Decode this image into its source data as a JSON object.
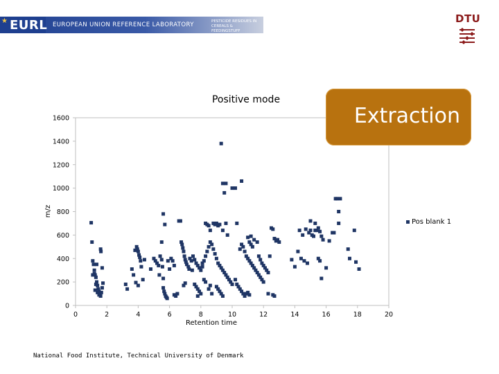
{
  "header": {
    "logo_text": "EURL",
    "banner_title": "EUROPEAN UNION REFERENCE LABORATORY",
    "banner_subtitle": "PESTICIDE RESIDUES IN CEREALS & FEEDINGSTUFF",
    "institution_logo": "DTU"
  },
  "callout": {
    "text": "Extraction"
  },
  "footer": {
    "text": "National Food Institute, Technical University of Denmark"
  },
  "colors": {
    "marker": "#1f3564",
    "callout": "#b8720f",
    "banner": "#1e3f8f",
    "dtu": "#8b1a1a"
  },
  "chart_data": {
    "type": "scatter",
    "title": "Positive mode",
    "xlabel": "Retention time",
    "ylabel": "m/z",
    "xlim": [
      0,
      20
    ],
    "ylim": [
      0,
      1600
    ],
    "xticks": [
      0,
      2,
      4,
      6,
      8,
      10,
      12,
      14,
      16,
      18,
      20
    ],
    "yticks": [
      0,
      200,
      400,
      600,
      800,
      1000,
      1200,
      1400,
      1600
    ],
    "legend": {
      "position": "right",
      "entries": [
        "Pos blank 1"
      ]
    },
    "series": [
      {
        "name": "Pos blank 1",
        "points": [
          [
            1.0,
            705
          ],
          [
            1.05,
            540
          ],
          [
            1.1,
            380
          ],
          [
            1.15,
            350
          ],
          [
            1.2,
            300
          ],
          [
            1.25,
            260
          ],
          [
            1.3,
            240
          ],
          [
            1.35,
            200
          ],
          [
            1.4,
            170
          ],
          [
            1.45,
            140
          ],
          [
            1.5,
            120
          ],
          [
            1.55,
            100
          ],
          [
            1.6,
            80
          ],
          [
            1.65,
            110
          ],
          [
            1.7,
            150
          ],
          [
            1.75,
            190
          ],
          [
            1.6,
            480
          ],
          [
            1.62,
            460
          ],
          [
            1.2,
            270
          ],
          [
            1.1,
            260
          ],
          [
            1.3,
            180
          ],
          [
            1.4,
            110
          ],
          [
            1.5,
            90
          ],
          [
            1.7,
            320
          ],
          [
            1.35,
            350
          ],
          [
            1.25,
            130
          ],
          [
            3.2,
            180
          ],
          [
            3.3,
            140
          ],
          [
            3.6,
            310
          ],
          [
            3.7,
            260
          ],
          [
            3.8,
            470
          ],
          [
            3.9,
            500
          ],
          [
            3.95,
            480
          ],
          [
            4.0,
            460
          ],
          [
            4.05,
            430
          ],
          [
            4.1,
            410
          ],
          [
            4.15,
            380
          ],
          [
            4.2,
            330
          ],
          [
            4.3,
            220
          ],
          [
            3.85,
            195
          ],
          [
            4.0,
            170
          ],
          [
            4.4,
            390
          ],
          [
            4.8,
            310
          ],
          [
            5.0,
            400
          ],
          [
            5.1,
            380
          ],
          [
            5.2,
            360
          ],
          [
            5.3,
            340
          ],
          [
            5.35,
            260
          ],
          [
            5.4,
            420
          ],
          [
            5.5,
            390
          ],
          [
            5.55,
            330
          ],
          [
            5.6,
            230
          ],
          [
            5.6,
            150
          ],
          [
            5.65,
            120
          ],
          [
            5.7,
            100
          ],
          [
            5.75,
            80
          ],
          [
            5.8,
            70
          ],
          [
            5.85,
            60
          ],
          [
            5.5,
            540
          ],
          [
            5.6,
            780
          ],
          [
            5.7,
            690
          ],
          [
            5.9,
            380
          ],
          [
            6.0,
            310
          ],
          [
            6.1,
            400
          ],
          [
            6.2,
            380
          ],
          [
            6.3,
            340
          ],
          [
            6.4,
            80
          ],
          [
            6.5,
            100
          ],
          [
            6.6,
            720
          ],
          [
            6.7,
            720
          ],
          [
            6.75,
            540
          ],
          [
            6.8,
            520
          ],
          [
            6.85,
            490
          ],
          [
            6.9,
            460
          ],
          [
            6.95,
            420
          ],
          [
            7.0,
            390
          ],
          [
            7.05,
            370
          ],
          [
            7.1,
            350
          ],
          [
            7.2,
            330
          ],
          [
            7.25,
            310
          ],
          [
            7.3,
            400
          ],
          [
            7.4,
            380
          ],
          [
            7.45,
            300
          ],
          [
            7.5,
            420
          ],
          [
            7.6,
            390
          ],
          [
            7.7,
            360
          ],
          [
            7.8,
            340
          ],
          [
            7.9,
            320
          ],
          [
            8.0,
            300
          ],
          [
            8.1,
            330
          ],
          [
            8.2,
            220
          ],
          [
            8.3,
            200
          ],
          [
            7.6,
            180
          ],
          [
            7.7,
            160
          ],
          [
            7.8,
            140
          ],
          [
            7.9,
            120
          ],
          [
            8.0,
            100
          ],
          [
            7.8,
            80
          ],
          [
            7.0,
            190
          ],
          [
            6.9,
            170
          ],
          [
            6.3,
            90
          ],
          [
            8.1,
            360
          ],
          [
            8.2,
            380
          ],
          [
            8.3,
            420
          ],
          [
            8.4,
            460
          ],
          [
            8.5,
            500
          ],
          [
            8.6,
            540
          ],
          [
            8.7,
            520
          ],
          [
            8.8,
            480
          ],
          [
            8.9,
            440
          ],
          [
            9.0,
            400
          ],
          [
            9.1,
            360
          ],
          [
            9.2,
            340
          ],
          [
            9.3,
            320
          ],
          [
            9.4,
            300
          ],
          [
            9.5,
            280
          ],
          [
            9.6,
            260
          ],
          [
            9.7,
            240
          ],
          [
            9.8,
            220
          ],
          [
            9.9,
            200
          ],
          [
            10.0,
            180
          ],
          [
            8.3,
            700
          ],
          [
            8.4,
            690
          ],
          [
            8.5,
            680
          ],
          [
            8.6,
            640
          ],
          [
            8.8,
            700
          ],
          [
            8.9,
            690
          ],
          [
            9.0,
            700
          ],
          [
            9.1,
            680
          ],
          [
            9.2,
            690
          ],
          [
            9.4,
            640
          ],
          [
            9.6,
            700
          ],
          [
            9.7,
            600
          ],
          [
            9.3,
            1380
          ],
          [
            9.4,
            1040
          ],
          [
            9.5,
            960
          ],
          [
            9.6,
            1040
          ],
          [
            10.0,
            1000
          ],
          [
            10.2,
            1000
          ],
          [
            10.6,
            1060
          ],
          [
            10.3,
            700
          ],
          [
            10.5,
            480
          ],
          [
            10.6,
            520
          ],
          [
            10.7,
            500
          ],
          [
            10.8,
            460
          ],
          [
            10.9,
            420
          ],
          [
            11.0,
            400
          ],
          [
            11.1,
            380
          ],
          [
            11.2,
            360
          ],
          [
            11.3,
            340
          ],
          [
            11.4,
            320
          ],
          [
            11.5,
            300
          ],
          [
            11.6,
            280
          ],
          [
            11.7,
            260
          ],
          [
            11.8,
            240
          ],
          [
            11.9,
            220
          ],
          [
            12.0,
            200
          ],
          [
            11.2,
            520
          ],
          [
            11.1,
            540
          ],
          [
            11.3,
            500
          ],
          [
            11.0,
            580
          ],
          [
            10.2,
            220
          ],
          [
            10.3,
            180
          ],
          [
            10.4,
            160
          ],
          [
            10.5,
            140
          ],
          [
            10.6,
            120
          ],
          [
            10.7,
            100
          ],
          [
            10.8,
            80
          ],
          [
            10.9,
            100
          ],
          [
            11.0,
            110
          ],
          [
            11.1,
            90
          ],
          [
            9.0,
            160
          ],
          [
            9.1,
            140
          ],
          [
            9.2,
            120
          ],
          [
            9.3,
            100
          ],
          [
            9.4,
            80
          ],
          [
            8.7,
            100
          ],
          [
            8.5,
            140
          ],
          [
            8.6,
            170
          ],
          [
            11.2,
            590
          ],
          [
            11.4,
            560
          ],
          [
            11.6,
            540
          ],
          [
            11.7,
            420
          ],
          [
            11.8,
            390
          ],
          [
            11.9,
            360
          ],
          [
            12.0,
            340
          ],
          [
            12.1,
            320
          ],
          [
            12.2,
            300
          ],
          [
            12.3,
            280
          ],
          [
            12.4,
            420
          ],
          [
            12.5,
            660
          ],
          [
            12.6,
            650
          ],
          [
            12.7,
            570
          ],
          [
            12.8,
            550
          ],
          [
            12.9,
            560
          ],
          [
            13.0,
            540
          ],
          [
            12.6,
            90
          ],
          [
            12.7,
            80
          ],
          [
            12.3,
            100
          ],
          [
            13.8,
            390
          ],
          [
            14.0,
            330
          ],
          [
            14.2,
            460
          ],
          [
            14.4,
            400
          ],
          [
            14.6,
            380
          ],
          [
            14.8,
            360
          ],
          [
            14.3,
            640
          ],
          [
            14.5,
            600
          ],
          [
            14.7,
            650
          ],
          [
            14.9,
            620
          ],
          [
            15.0,
            640
          ],
          [
            15.1,
            600
          ],
          [
            15.2,
            590
          ],
          [
            15.3,
            640
          ],
          [
            15.4,
            640
          ],
          [
            15.5,
            660
          ],
          [
            15.6,
            630
          ],
          [
            15.7,
            590
          ],
          [
            15.8,
            560
          ],
          [
            15.0,
            720
          ],
          [
            15.3,
            700
          ],
          [
            15.5,
            400
          ],
          [
            15.6,
            380
          ],
          [
            15.7,
            230
          ],
          [
            16.0,
            320
          ],
          [
            16.2,
            550
          ],
          [
            16.4,
            620
          ],
          [
            16.5,
            620
          ],
          [
            16.6,
            910
          ],
          [
            16.7,
            910
          ],
          [
            16.8,
            800
          ],
          [
            16.8,
            700
          ],
          [
            16.9,
            910
          ],
          [
            17.4,
            480
          ],
          [
            17.5,
            400
          ],
          [
            17.8,
            640
          ],
          [
            17.9,
            370
          ],
          [
            18.1,
            310
          ]
        ]
      }
    ]
  }
}
